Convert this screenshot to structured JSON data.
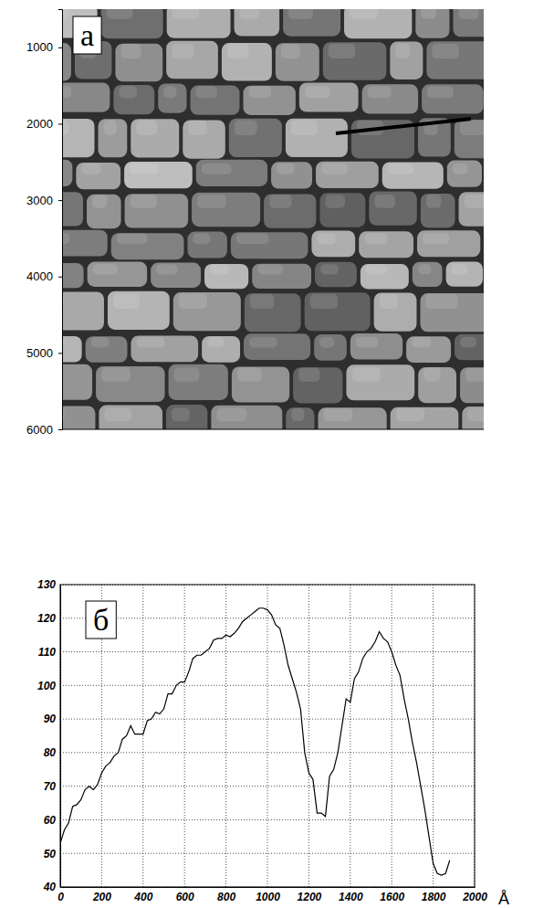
{
  "chart_data": [
    {
      "type": "image",
      "panel_label": "а",
      "ylim": [
        500,
        6000
      ],
      "yticks": [
        1000,
        2000,
        3000,
        4000,
        5000,
        6000
      ]
    },
    {
      "type": "line",
      "panel_label": "б",
      "x_label": "Å",
      "color": "#000000",
      "grid": true,
      "xlim": [
        0,
        2000
      ],
      "xticks": [
        0,
        200,
        400,
        600,
        800,
        1000,
        1200,
        1400,
        1600,
        1800,
        2000
      ],
      "ylim": [
        40,
        130
      ],
      "yticks": [
        40,
        50,
        60,
        70,
        80,
        90,
        100,
        110,
        120,
        130
      ],
      "x": [
        0,
        20,
        40,
        60,
        80,
        100,
        120,
        140,
        160,
        180,
        200,
        220,
        240,
        260,
        280,
        300,
        320,
        340,
        360,
        380,
        400,
        420,
        440,
        460,
        480,
        500,
        520,
        540,
        560,
        580,
        600,
        620,
        640,
        660,
        680,
        700,
        720,
        740,
        760,
        780,
        800,
        820,
        840,
        860,
        880,
        900,
        920,
        940,
        960,
        980,
        1000,
        1020,
        1040,
        1060,
        1080,
        1100,
        1120,
        1140,
        1160,
        1180,
        1200,
        1220,
        1240,
        1260,
        1280,
        1300,
        1320,
        1340,
        1360,
        1380,
        1400,
        1420,
        1440,
        1460,
        1480,
        1500,
        1520,
        1540,
        1560,
        1580,
        1600,
        1620,
        1640,
        1660,
        1680,
        1700,
        1720,
        1740,
        1760,
        1780,
        1800,
        1820,
        1840,
        1860,
        1880
      ],
      "values": [
        53,
        57,
        59,
        64,
        64.5,
        66,
        69,
        70,
        69,
        70.5,
        74,
        76,
        77,
        79,
        80,
        84,
        85,
        88,
        85.5,
        85.5,
        85.5,
        89.5,
        90,
        92,
        91.5,
        93,
        97.5,
        97.5,
        100,
        101,
        101,
        104,
        108,
        109,
        109,
        110,
        111,
        113.5,
        114,
        114,
        115,
        114.5,
        115.5,
        117,
        119,
        120,
        121,
        122,
        123,
        123,
        122.5,
        121,
        118,
        117,
        112,
        106,
        102,
        98,
        93,
        80,
        74,
        72,
        62,
        62,
        61,
        73,
        75,
        80,
        88,
        96,
        95,
        102,
        104,
        108,
        110,
        111,
        113,
        116,
        114,
        113,
        110,
        106,
        103,
        96,
        90,
        83,
        77,
        70,
        63,
        55,
        47,
        44,
        43.5,
        44,
        48
      ]
    }
  ]
}
